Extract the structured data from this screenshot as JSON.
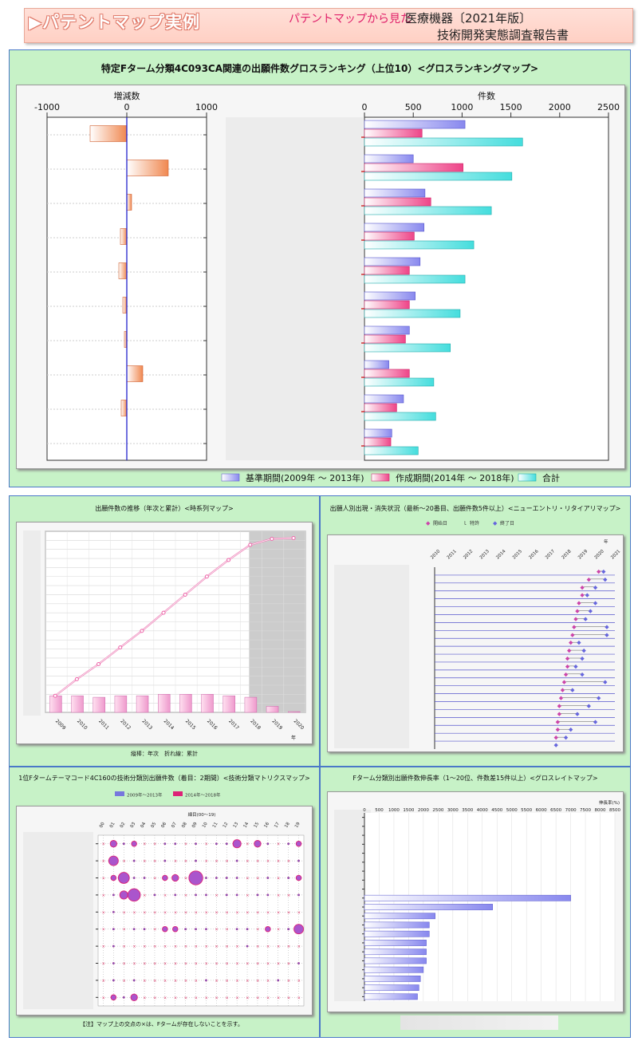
{
  "header": {
    "title": "▶パテントマップ実例",
    "tagline": "パテントマップから見た",
    "product": "医療機器〔2021年版〕",
    "report": "技術開発実態調査報告書"
  },
  "colors": {
    "base_period": "#8888ee",
    "create_period": "#ee4488",
    "total": "#44dddd",
    "delta": "#f08850",
    "panel_bg": "#c7f2c7"
  },
  "chart_data": [
    {
      "type": "bar",
      "title": "特定Fターム分類4C093CA関連の出願件数グロスランキング（上位10）<グロスランキングマップ>",
      "subchart": "delta",
      "xlabel": "増減数",
      "xlim": [
        -1000,
        1000
      ],
      "ticks": [
        "-1000",
        "0",
        "1000"
      ],
      "values": [
        -460,
        520,
        60,
        -80,
        -100,
        -50,
        -30,
        200,
        -70,
        0
      ]
    },
    {
      "type": "bar",
      "subchart": "counts",
      "xlabel": "件数",
      "xlim": [
        0,
        2500
      ],
      "ticks": [
        "0",
        "500",
        "1000",
        "1500",
        "2000",
        "2500"
      ],
      "series": [
        {
          "name": "基準期間(2009年 ～ 2013年)",
          "values": [
            1030,
            500,
            620,
            610,
            570,
            520,
            460,
            250,
            400,
            280
          ]
        },
        {
          "name": "作成期間(2014年 ～ 2018年)",
          "values": [
            590,
            1010,
            680,
            510,
            460,
            460,
            420,
            460,
            330,
            270
          ]
        },
        {
          "name": "合計",
          "values": [
            1620,
            1510,
            1300,
            1120,
            1030,
            980,
            880,
            710,
            730,
            550
          ]
        }
      ]
    },
    {
      "type": "line",
      "title": "出願件数の推移（年次と累計）<時系列マップ>",
      "categories": [
        "2009",
        "2010",
        "2011",
        "2012",
        "2013",
        "2014",
        "2015",
        "2016",
        "2017",
        "2018",
        "2019",
        "2020"
      ],
      "xunit": "年",
      "series": [
        {
          "name": "年次",
          "type": "bar",
          "values": [
            0.11,
            0.11,
            0.1,
            0.11,
            0.11,
            0.12,
            0.12,
            0.12,
            0.11,
            0.1,
            0.04,
            0.005
          ]
        },
        {
          "name": "累計",
          "type": "line",
          "values": [
            0.11,
            0.22,
            0.32,
            0.43,
            0.54,
            0.66,
            0.78,
            0.9,
            1.01,
            1.11,
            1.15,
            1.155
          ]
        }
      ],
      "shaded_from": "2018",
      "note": "縦棒：年次　折れ線：累計"
    },
    {
      "type": "scatter",
      "title": "出願人別出現・消失状況（最新～20番目、出願件数5件以上）<ニューエントリ・リタイアリマップ>",
      "legend": [
        "開始日",
        "特許",
        "終了日"
      ],
      "years": [
        "2010",
        "2011",
        "2012",
        "2013",
        "2014",
        "2015",
        "2016",
        "2017",
        "2018",
        "2019",
        "2020",
        "2021"
      ],
      "xunit": "年",
      "rows": [
        {
          "start": 2020.0,
          "end": 2020.3
        },
        {
          "start": 2019.4,
          "end": 2020.4
        },
        {
          "start": 2019.0,
          "end": 2019.8
        },
        {
          "start": 2019.0,
          "end": 2019.3
        },
        {
          "start": 2018.8,
          "end": 2019.8
        },
        {
          "start": 2018.7,
          "end": 2019.5
        },
        {
          "start": 2018.6,
          "end": 2019.2
        },
        {
          "start": 2018.5,
          "end": 2020.5
        },
        {
          "start": 2018.4,
          "end": 2020.5
        },
        {
          "start": 2018.3,
          "end": 2018.8
        },
        {
          "start": 2018.2,
          "end": 2019.1
        },
        {
          "start": 2018.1,
          "end": 2019.0
        },
        {
          "start": 2018.1,
          "end": 2018.6
        },
        {
          "start": 2018.0,
          "end": 2019.0
        },
        {
          "start": 2017.9,
          "end": 2020.4
        },
        {
          "start": 2017.8,
          "end": 2018.4
        },
        {
          "start": 2017.7,
          "end": 2020.0
        },
        {
          "start": 2017.6,
          "end": 2019.4
        },
        {
          "start": 2017.6,
          "end": 2018.7
        },
        {
          "start": 2017.5,
          "end": 2019.8
        },
        {
          "start": 2017.5,
          "end": 2018.3
        },
        {
          "start": 2017.4,
          "end": 2018.0
        }
      ]
    },
    {
      "type": "scatter",
      "title": "1位Fタームテーマコード4C160の技術分類別出願件数（着目：2期間）<技術分類マトリクスマップ>",
      "legend": [
        "2009年～2013年",
        "2014年～2018年"
      ],
      "xlabel": "細目(00～19)",
      "columns": [
        "00",
        "01",
        "02",
        "03",
        "04",
        "05",
        "06",
        "07",
        "08",
        "09",
        "10",
        "11",
        "12",
        "13",
        "14",
        "15",
        "16",
        "17",
        "18",
        "19"
      ],
      "rows": 10,
      "note": "【注】マップ上の交点の×は、Fタームが存在しないことを示す。"
    },
    {
      "type": "bar",
      "title": "Fターム分類別出願件数伸長率（1～20位、件数差15件以上）<グロスレイトマップ>",
      "xlabel": "伸長率(%)",
      "xlim": [
        0,
        8500
      ],
      "ticks": [
        "0",
        "500",
        "1000",
        "1500",
        "2000",
        "2500",
        "3000",
        "3500",
        "4000",
        "4500",
        "5000",
        "5500",
        "6000",
        "6500",
        "7000",
        "7500",
        "8000",
        "8500"
      ],
      "values": [
        0,
        0,
        0,
        0,
        0,
        0,
        0,
        0,
        0,
        7000,
        4350,
        2400,
        2200,
        2200,
        2100,
        2100,
        2100,
        2000,
        1900,
        1850,
        1800
      ]
    }
  ]
}
